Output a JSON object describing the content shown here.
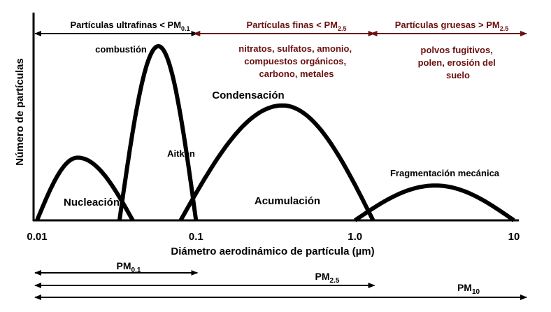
{
  "chart_data": {
    "type": "line",
    "xscale": "log",
    "xlim": [
      0.01,
      10
    ],
    "x_ticks": [
      {
        "value": 0.01,
        "label": "0.01"
      },
      {
        "value": 0.1,
        "label": "0.1"
      },
      {
        "value": 1.0,
        "label": "1.0"
      },
      {
        "value": 10,
        "label": "10"
      }
    ],
    "xlabel": "Diámetro aerodinámico de partícula (µm)",
    "ylabel": "Número de partículas",
    "grid": false,
    "modes": [
      {
        "name": "Nucleación",
        "x_start": 0.01,
        "x_peak": 0.018,
        "x_end": 0.04,
        "peak": 0.36
      },
      {
        "name": "Aitken",
        "x_start": 0.033,
        "x_peak": 0.058,
        "x_end": 0.1,
        "peak": 1.0
      },
      {
        "name": "Acumulación",
        "x_start": 0.08,
        "x_peak": 0.35,
        "x_end": 1.3,
        "peak": 0.66
      },
      {
        "name": "Fragmentación mecánica",
        "x_start": 1.0,
        "x_peak": 3.2,
        "x_end": 10,
        "peak": 0.2
      }
    ],
    "ranges_top": [
      {
        "label": "Partículas ultrafinas < PM",
        "sub": "0.1",
        "x_start": 0.01,
        "x_end": 0.1,
        "color": "#000000"
      },
      {
        "label": "Partículas finas < PM",
        "sub": "2.5",
        "x_start": 0.1,
        "x_end": 1.3,
        "color": "#6b1010"
      },
      {
        "label": "Partículas gruesas > PM",
        "sub": "2.5",
        "x_start": 1.3,
        "x_end": 10,
        "color": "#6b1010"
      }
    ],
    "ranges_bottom": [
      {
        "label": "PM",
        "sub": "0.1",
        "x_start": 0.01,
        "x_end": 0.1
      },
      {
        "label": "PM",
        "sub": "2.5",
        "x_start": 0.01,
        "x_end": 1.3
      },
      {
        "label": "PM",
        "sub": "10",
        "x_start": 0.01,
        "x_end": 10
      }
    ],
    "annotations": {
      "combustion": "combustión",
      "condensacion": "Condensación",
      "finas_sources": [
        "nitratos,   sulfatos,  amonio,",
        "compuestos orgánicos,",
        "carbono, metales"
      ],
      "gruesas_sources": [
        "polvos fugitivos,",
        "polen, erosión del",
        "suelo"
      ]
    }
  },
  "colors": {
    "dark_red": "#6b1010",
    "ink": "#000000"
  }
}
